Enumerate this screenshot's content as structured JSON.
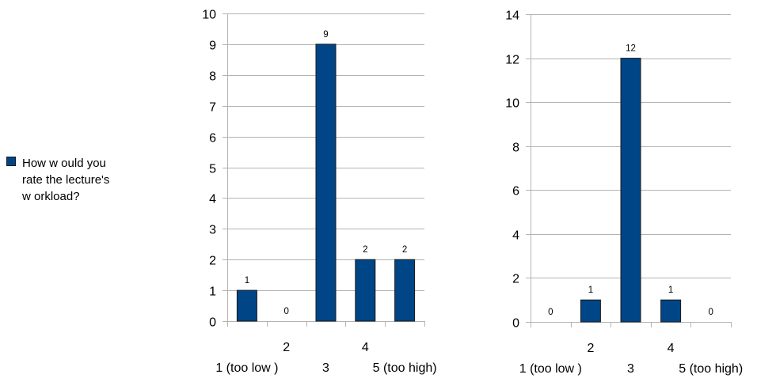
{
  "legend": {
    "label": "How  w ould you\nrate the lecture's\nw orkload?",
    "color": "#004586"
  },
  "chart_data": [
    {
      "type": "bar",
      "categories": [
        "1 (too low )",
        "2",
        "3",
        "4",
        "5 (too high)"
      ],
      "values": [
        1,
        0,
        9,
        2,
        2
      ],
      "ylim": [
        0,
        10
      ],
      "yticks": [
        0,
        1,
        2,
        3,
        4,
        5,
        6,
        7,
        8,
        9,
        10
      ],
      "grid": true,
      "color": "#004586",
      "legend_position": "left"
    },
    {
      "type": "bar",
      "categories": [
        "1 (too low )",
        "2",
        "3",
        "4",
        "5 (too high)"
      ],
      "values": [
        0,
        1,
        12,
        1,
        0
      ],
      "ylim": [
        0,
        14
      ],
      "yticks": [
        0,
        2,
        4,
        6,
        8,
        10,
        12,
        14
      ],
      "grid": true,
      "color": "#004586"
    }
  ]
}
